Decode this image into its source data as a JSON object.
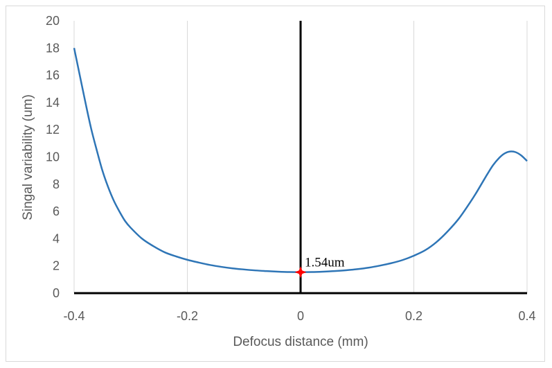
{
  "chart_data": {
    "type": "line",
    "title": "",
    "xlabel": "Defocus distance (mm)",
    "ylabel": "Singal variability (um)",
    "xlim": [
      -0.4,
      0.4
    ],
    "ylim": [
      0,
      20
    ],
    "xticks": [
      -0.4,
      -0.2,
      0,
      0.2,
      0.4
    ],
    "xtick_labels": [
      "-0.4",
      "-0.2",
      "0",
      "0.2",
      "0.4"
    ],
    "yticks": [
      0,
      2,
      4,
      6,
      8,
      10,
      12,
      14,
      16,
      18,
      20
    ],
    "ytick_labels": [
      "0",
      "2",
      "4",
      "6",
      "8",
      "10",
      "12",
      "14",
      "16",
      "18",
      "20"
    ],
    "grid": "vertical",
    "legend": "none",
    "series": [
      {
        "color": "#2e75b6",
        "x": [
          -0.4,
          -0.39,
          -0.38,
          -0.37,
          -0.36,
          -0.35,
          -0.34,
          -0.33,
          -0.32,
          -0.31,
          -0.3,
          -0.28,
          -0.26,
          -0.24,
          -0.22,
          -0.2,
          -0.18,
          -0.16,
          -0.14,
          -0.12,
          -0.1,
          -0.08,
          -0.06,
          -0.04,
          -0.02,
          0,
          0.02,
          0.04,
          0.06,
          0.08,
          0.1,
          0.12,
          0.14,
          0.16,
          0.18,
          0.2,
          0.22,
          0.24,
          0.26,
          0.28,
          0.3,
          0.31,
          0.32,
          0.33,
          0.34,
          0.35,
          0.36,
          0.37,
          0.38,
          0.39,
          0.4
        ],
        "y": [
          18.0,
          16.0,
          14.0,
          12.1,
          10.5,
          9.0,
          7.8,
          6.8,
          6.0,
          5.3,
          4.8,
          4.0,
          3.45,
          3.0,
          2.7,
          2.45,
          2.25,
          2.07,
          1.93,
          1.82,
          1.74,
          1.67,
          1.62,
          1.58,
          1.55,
          1.54,
          1.55,
          1.58,
          1.62,
          1.68,
          1.76,
          1.87,
          2.02,
          2.2,
          2.43,
          2.75,
          3.15,
          3.75,
          4.55,
          5.5,
          6.7,
          7.35,
          8.05,
          8.75,
          9.4,
          9.9,
          10.25,
          10.4,
          10.35,
          10.1,
          9.7
        ]
      }
    ],
    "annotation": {
      "text": "1.54um",
      "x": 0,
      "y": 1.54,
      "marker_color": "#ff0000"
    }
  }
}
